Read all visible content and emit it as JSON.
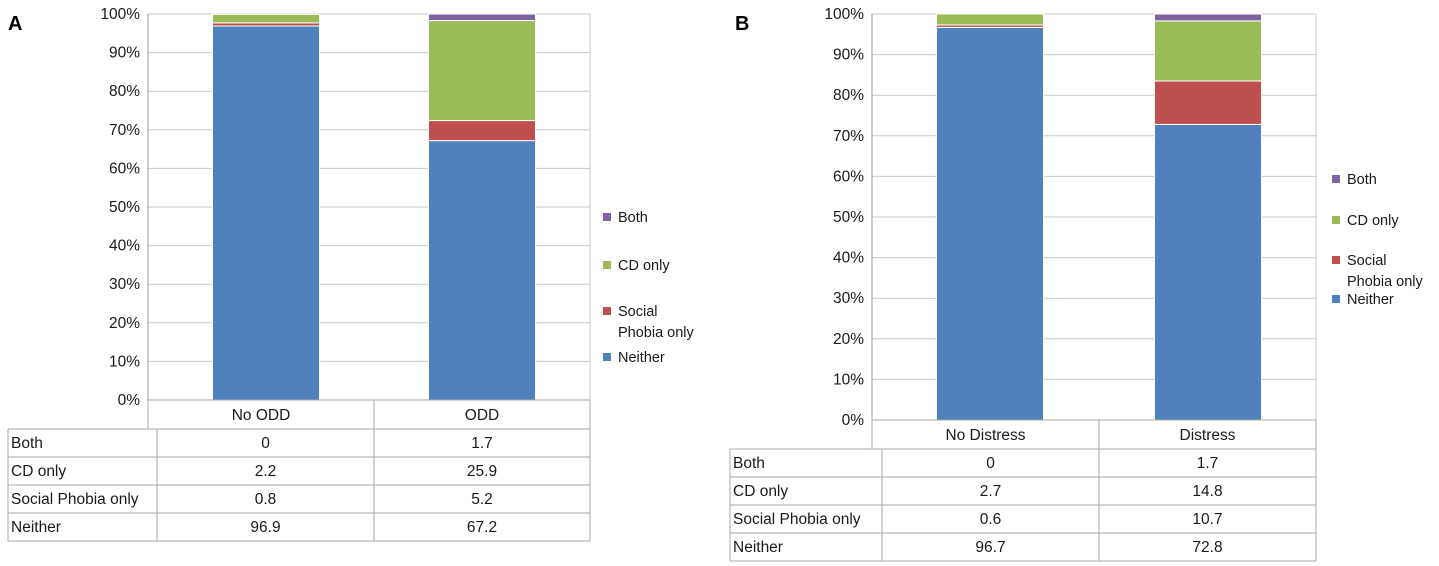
{
  "chart_data": [
    {
      "type": "bar",
      "stacked": true,
      "panel_label": "A",
      "categories": [
        "No ODD",
        "ODD"
      ],
      "series": [
        {
          "name": "Neither",
          "color": "#4f81bd",
          "values": [
            96.9,
            67.2
          ]
        },
        {
          "name": "Social Phobia only",
          "color": "#c0504d",
          "values": [
            0.8,
            5.2
          ]
        },
        {
          "name": "CD only",
          "color": "#9bbb59",
          "values": [
            2.2,
            25.9
          ]
        },
        {
          "name": "Both",
          "color": "#8064a2",
          "values": [
            0,
            1.7
          ]
        }
      ],
      "legend": [
        {
          "lines": [
            "Both"
          ],
          "color": "#8064a2"
        },
        {
          "lines": [
            "CD only"
          ],
          "color": "#9bbb59"
        },
        {
          "lines": [
            "Social",
            "Phobia only"
          ],
          "color": "#c0504d"
        },
        {
          "lines": [
            "Neither"
          ],
          "color": "#4f81bd"
        }
      ],
      "yticks": [
        "0%",
        "10%",
        "20%",
        "30%",
        "40%",
        "50%",
        "60%",
        "70%",
        "80%",
        "90%",
        "100%"
      ],
      "ylim": [
        0,
        100
      ],
      "table": {
        "rows": [
          {
            "label": "Both",
            "values": [
              "0",
              "1.7"
            ]
          },
          {
            "label": "CD only",
            "values": [
              "2.2",
              "25.9"
            ]
          },
          {
            "label": "Social Phobia only",
            "values": [
              "0.8",
              "5.2"
            ]
          },
          {
            "label": "Neither",
            "values": [
              "96.9",
              "67.2"
            ]
          }
        ]
      }
    },
    {
      "type": "bar",
      "stacked": true,
      "panel_label": "B",
      "categories": [
        "No Distress",
        "Distress"
      ],
      "series": [
        {
          "name": "Neither",
          "color": "#4f81bd",
          "values": [
            96.7,
            72.8
          ]
        },
        {
          "name": "Social Phobia only",
          "color": "#c0504d",
          "values": [
            0.6,
            10.7
          ]
        },
        {
          "name": "CD only",
          "color": "#9bbb59",
          "values": [
            2.7,
            14.8
          ]
        },
        {
          "name": "Both",
          "color": "#8064a2",
          "values": [
            0,
            1.7
          ]
        }
      ],
      "legend": [
        {
          "lines": [
            "Both"
          ],
          "color": "#8064a2"
        },
        {
          "lines": [
            "CD only"
          ],
          "color": "#9bbb59"
        },
        {
          "lines": [
            "Social",
            "Phobia only"
          ],
          "color": "#c0504d"
        },
        {
          "lines": [
            "Neither"
          ],
          "color": "#4f81bd"
        }
      ],
      "yticks": [
        "0%",
        "10%",
        "20%",
        "30%",
        "40%",
        "50%",
        "60%",
        "70%",
        "80%",
        "90%",
        "100%"
      ],
      "ylim": [
        0,
        100
      ],
      "table": {
        "rows": [
          {
            "label": "Both",
            "values": [
              "0",
              "1.7"
            ]
          },
          {
            "label": "CD only",
            "values": [
              "2.7",
              "14.8"
            ]
          },
          {
            "label": "Social Phobia only",
            "values": [
              "0.6",
              "10.7"
            ]
          },
          {
            "label": "Neither",
            "values": [
              "96.7",
              "72.8"
            ]
          }
        ]
      }
    }
  ]
}
